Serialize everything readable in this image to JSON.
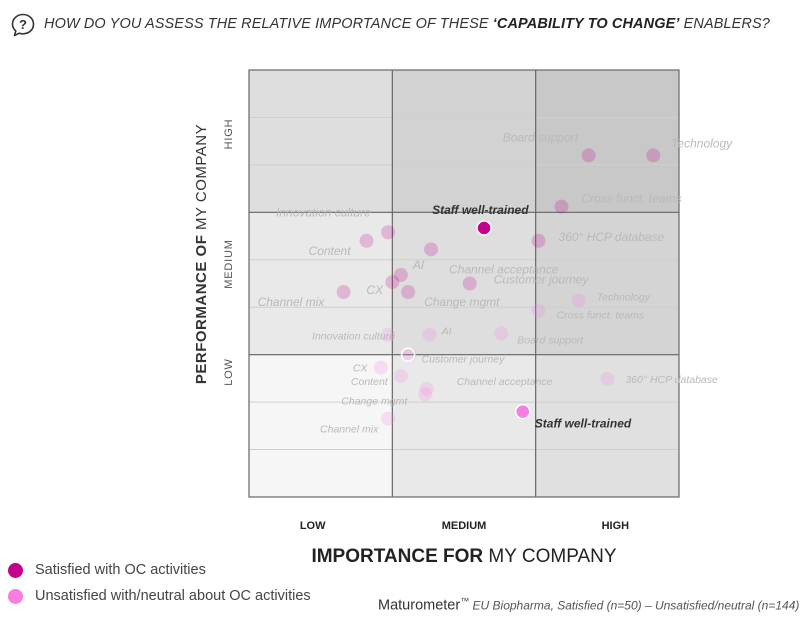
{
  "question": {
    "prefix": "HOW DO YOU ASSESS THE RELATIVE IMPORTANCE OF THESE ",
    "highlight": "‘CAPABILITY TO CHANGE’",
    "suffix": " ENABLERS?"
  },
  "legend": {
    "satisfied": {
      "label": "Satisfied with OC activities",
      "color": "#c4008c"
    },
    "unsatisfied": {
      "label": "Unsatisfied with/neutral about OC activities",
      "color": "#f57ede"
    }
  },
  "source": {
    "brand": "Maturometer",
    "tm": "™",
    "detail": " EU Biopharma, Satisfied (n=50) – Unsatisfied/neutral (n=144)"
  },
  "chart_data": {
    "type": "scatter",
    "xlabel_bold": "IMPORTANCE FOR",
    "xlabel_rest": " MY COMPANY",
    "ylabel_bold": "PERFORMANCE OF",
    "ylabel_rest": " MY COMPANY",
    "x_categories": [
      "LOW",
      "MEDIUM",
      "HIGH"
    ],
    "y_categories": [
      "LOW",
      "MEDIUM",
      "HIGH"
    ],
    "xlim": [
      0,
      3
    ],
    "ylim": [
      0,
      3
    ],
    "grid": true,
    "series": [
      {
        "name": "Satisfied with OC activities",
        "color": "#c4008c",
        "points": [
          {
            "label": "Staff well-trained",
            "x": 1.64,
            "y": 1.89,
            "highlight": true
          },
          {
            "label": "Board support",
            "x": 2.37,
            "y": 2.4
          },
          {
            "label": "Technology",
            "x": 2.82,
            "y": 2.4
          },
          {
            "label": "Cross funct. teams",
            "x": 2.18,
            "y": 2.04
          },
          {
            "label": "360° HCP database",
            "x": 2.02,
            "y": 1.8
          },
          {
            "label": "Innovation culture",
            "x": 0.97,
            "y": 1.86
          },
          {
            "label": "Content",
            "x": 0.82,
            "y": 1.8
          },
          {
            "label": "Channel acceptance",
            "x": 1.27,
            "y": 1.74
          },
          {
            "label": "AI",
            "x": 1.06,
            "y": 1.56
          },
          {
            "label": "CX",
            "x": 1.0,
            "y": 1.51
          },
          {
            "label": "Customer journey",
            "x": 1.54,
            "y": 1.5
          },
          {
            "label": "Change mgmt",
            "x": 1.11,
            "y": 1.44
          },
          {
            "label": "Channel mix",
            "x": 0.66,
            "y": 1.44
          }
        ]
      },
      {
        "name": "Unsatisfied with/neutral about OC activities",
        "color": "#f57ede",
        "points": [
          {
            "label": "Staff well-trained",
            "x": 1.91,
            "y": 0.6,
            "highlight": true
          },
          {
            "label": "Technology",
            "x": 2.3,
            "y": 1.38
          },
          {
            "label": "Cross funct. teams",
            "x": 2.02,
            "y": 1.31
          },
          {
            "label": "Board support",
            "x": 1.76,
            "y": 1.15
          },
          {
            "label": "Innovation culture",
            "x": 0.97,
            "y": 1.14
          },
          {
            "label": "AI",
            "x": 1.26,
            "y": 1.14
          },
          {
            "label": "Customer journey",
            "x": 1.12,
            "y": 1.0
          },
          {
            "label": "CX",
            "x": 0.92,
            "y": 0.91
          },
          {
            "label": "Content",
            "x": 1.06,
            "y": 0.85
          },
          {
            "label": "Channel acceptance",
            "x": 1.24,
            "y": 0.76
          },
          {
            "label": "Change mgmt",
            "x": 1.23,
            "y": 0.72
          },
          {
            "label": "360° HCP database",
            "x": 2.5,
            "y": 0.83
          },
          {
            "label": "Channel mix",
            "x": 0.97,
            "y": 0.55
          }
        ]
      }
    ]
  }
}
